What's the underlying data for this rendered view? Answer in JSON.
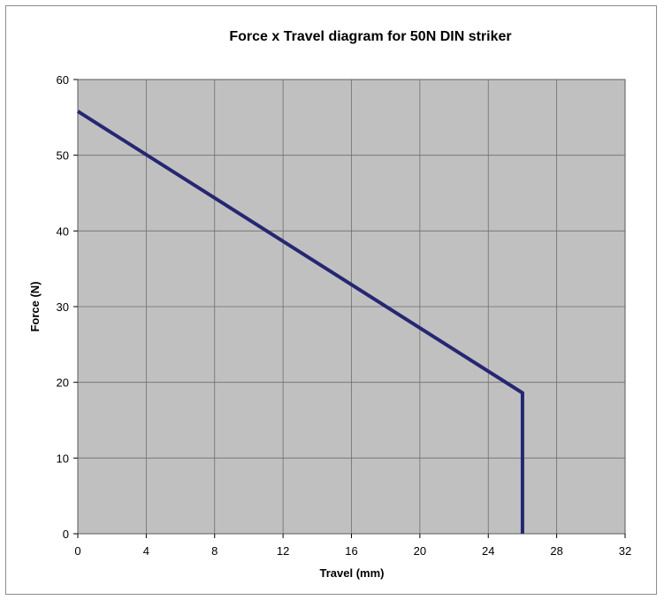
{
  "chart_data": {
    "type": "line",
    "title": "Force x Travel diagram for 50N DIN striker",
    "xlabel": "Travel (mm)",
    "ylabel": "Force (N)",
    "xlim": [
      0,
      32
    ],
    "ylim": [
      0,
      60
    ],
    "xticks": [
      0,
      4,
      8,
      12,
      16,
      20,
      24,
      28,
      32
    ],
    "yticks": [
      0,
      10,
      20,
      30,
      40,
      50,
      60
    ],
    "grid": true,
    "legend": "none",
    "series": [
      {
        "x": [
          0,
          26,
          26
        ],
        "y": [
          55.8,
          18.6,
          0
        ]
      }
    ],
    "colors": {
      "plot_background": "#c0c0c0",
      "line": "#262673",
      "grid": "#6e6e6e"
    }
  }
}
